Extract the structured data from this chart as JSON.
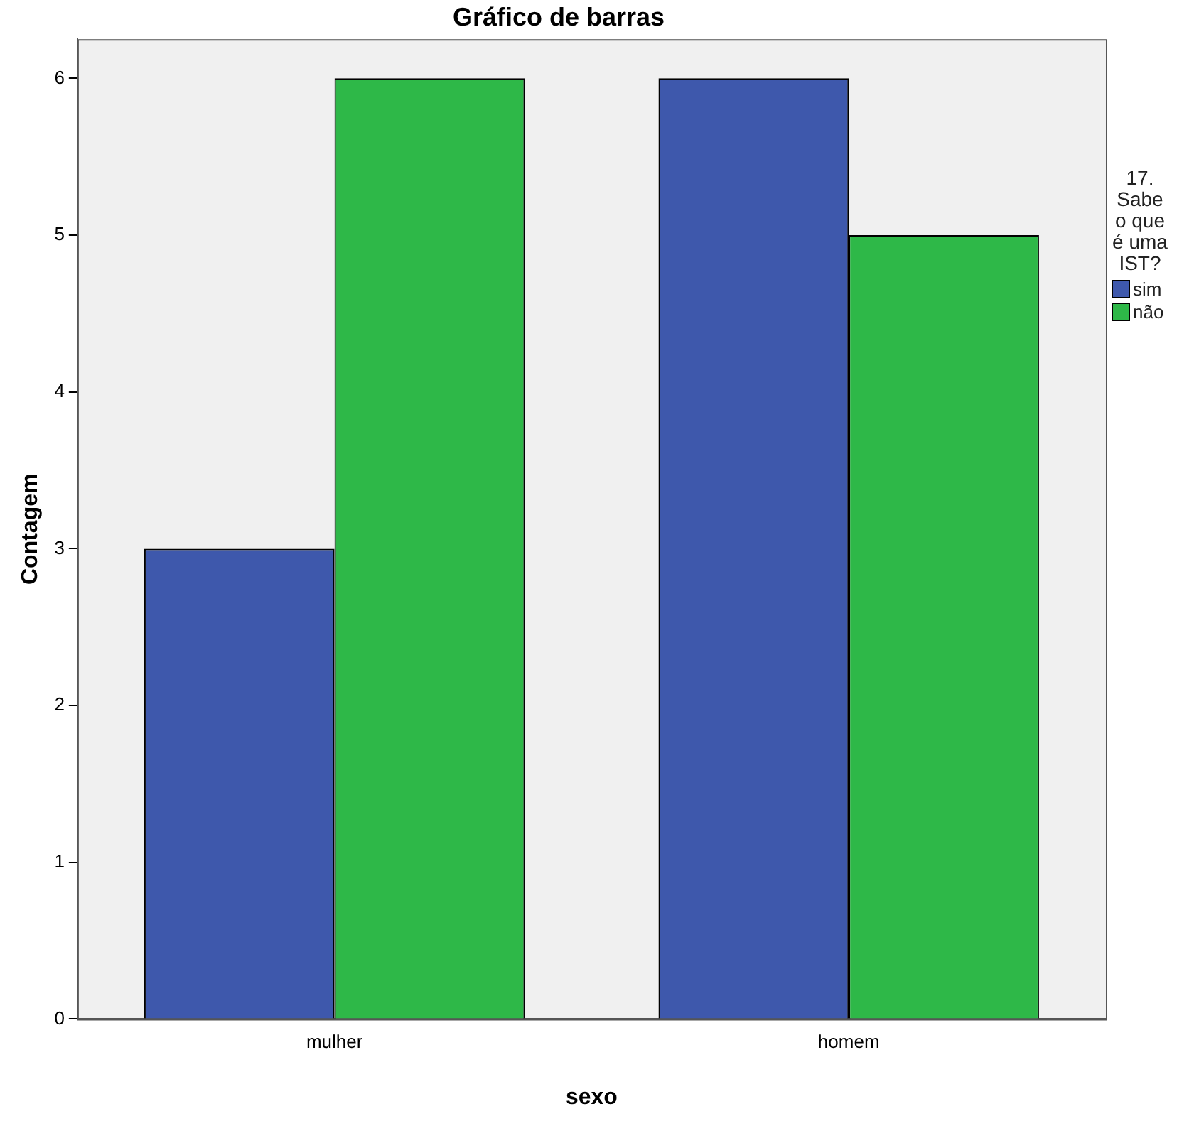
{
  "chart_data": {
    "type": "bar",
    "title": "Gráfico de barras",
    "xlabel": "sexo",
    "ylabel": "Contagem",
    "legend_title": "17. Sabe o que é uma IST?",
    "categories": [
      "mulher",
      "homem"
    ],
    "series": [
      {
        "name": "sim",
        "color": "#3e58ac",
        "values": [
          3,
          6
        ]
      },
      {
        "name": "não",
        "color": "#2eb848",
        "values": [
          6,
          5
        ]
      }
    ],
    "ylim": [
      0,
      6.25
    ],
    "yticks": [
      0,
      1,
      2,
      3,
      4,
      5,
      6
    ],
    "grid": false,
    "legend": "right"
  }
}
